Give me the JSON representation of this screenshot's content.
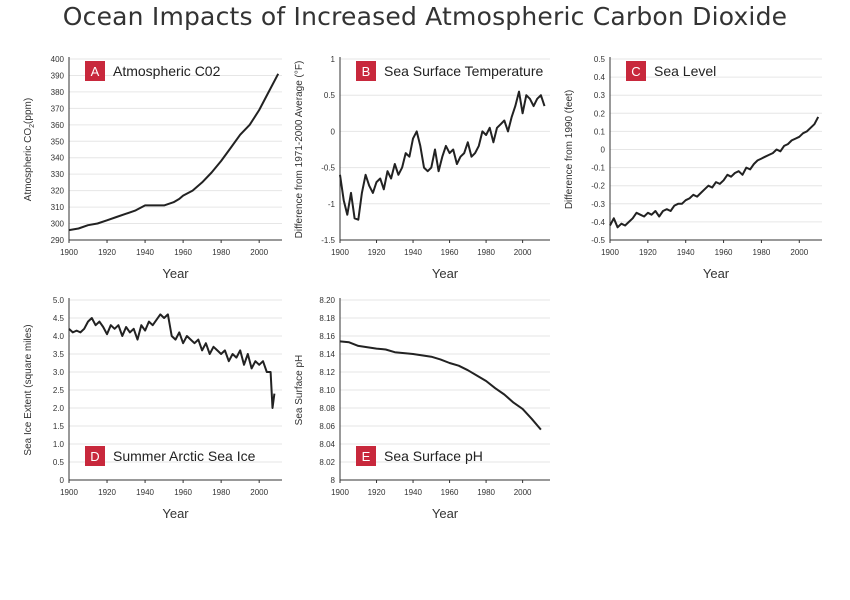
{
  "title": "Ocean Impacts of Increased Atmospheric Carbon Dioxide",
  "colors": {
    "badge": "#c8283c",
    "line": "#222222",
    "grid": "#e6e6e6",
    "text": "#333333"
  },
  "chart_data": [
    {
      "id": "A",
      "badge": "A",
      "type": "line",
      "title": "Atmospheric C02",
      "xlabel": "Year",
      "ylabel_parts": [
        "Atmospheric CO",
        "2",
        "(ppm)"
      ],
      "xlim": [
        1900,
        2012
      ],
      "ylim": [
        290,
        400
      ],
      "xticks": [
        1900,
        1920,
        1940,
        1960,
        1980,
        2000
      ],
      "yticks": [
        290,
        300,
        310,
        320,
        330,
        340,
        350,
        360,
        370,
        380,
        390,
        400
      ],
      "grid": true,
      "legend": "top-left",
      "series": [
        {
          "x": [
            1900,
            1905,
            1910,
            1915,
            1920,
            1925,
            1930,
            1935,
            1940,
            1945,
            1950,
            1955,
            1958,
            1960,
            1965,
            1970,
            1975,
            1980,
            1985,
            1990,
            1995,
            2000,
            2005,
            2010
          ],
          "y": [
            296,
            297,
            299,
            300,
            302,
            304,
            306,
            308,
            311,
            311,
            311,
            313,
            315,
            317,
            320,
            325,
            331,
            338,
            346,
            354,
            360,
            369,
            380,
            391
          ]
        }
      ]
    },
    {
      "id": "B",
      "badge": "B",
      "type": "line",
      "title": "Sea Surface Temperature",
      "xlabel": "Year",
      "ylabel": "Difference from 1971-2000 Average (°F)",
      "xlim": [
        1900,
        2015
      ],
      "ylim": [
        -1.5,
        1
      ],
      "xticks": [
        1900,
        1920,
        1940,
        1960,
        1980,
        2000
      ],
      "yticks": [
        -1.5,
        -1,
        -0.5,
        0,
        0.5,
        1
      ],
      "yticklabels": [
        "-1.5",
        "-1",
        "-0.5",
        "0",
        "0.5",
        "1"
      ],
      "grid": true,
      "legend": "top-left",
      "series": [
        {
          "x": [
            1900,
            1902,
            1904,
            1906,
            1908,
            1910,
            1912,
            1914,
            1916,
            1918,
            1920,
            1922,
            1924,
            1926,
            1928,
            1930,
            1932,
            1934,
            1936,
            1938,
            1940,
            1942,
            1944,
            1946,
            1948,
            1950,
            1952,
            1954,
            1956,
            1958,
            1960,
            1962,
            1964,
            1966,
            1968,
            1970,
            1972,
            1974,
            1976,
            1978,
            1980,
            1982,
            1984,
            1986,
            1988,
            1990,
            1992,
            1994,
            1996,
            1998,
            2000,
            2002,
            2004,
            2006,
            2008,
            2010,
            2012
          ],
          "y": [
            -0.6,
            -0.95,
            -1.15,
            -0.85,
            -1.2,
            -1.22,
            -0.85,
            -0.6,
            -0.75,
            -0.85,
            -0.7,
            -0.65,
            -0.8,
            -0.55,
            -0.65,
            -0.45,
            -0.6,
            -0.5,
            -0.3,
            -0.35,
            -0.1,
            0.0,
            -0.2,
            -0.5,
            -0.55,
            -0.5,
            -0.25,
            -0.55,
            -0.35,
            -0.2,
            -0.3,
            -0.25,
            -0.45,
            -0.35,
            -0.3,
            -0.15,
            -0.35,
            -0.3,
            -0.2,
            0.0,
            -0.05,
            0.05,
            -0.15,
            0.05,
            0.1,
            0.15,
            0.0,
            0.2,
            0.35,
            0.55,
            0.25,
            0.5,
            0.45,
            0.35,
            0.45,
            0.5,
            0.35
          ]
        }
      ]
    },
    {
      "id": "C",
      "badge": "C",
      "type": "line",
      "title": "Sea Level",
      "xlabel": "Year",
      "ylabel": "Difference from 1990 (feet)",
      "xlim": [
        1900,
        2012
      ],
      "ylim": [
        -0.5,
        0.5
      ],
      "xticks": [
        1900,
        1920,
        1940,
        1960,
        1980,
        2000
      ],
      "yticks": [
        -0.5,
        -0.4,
        -0.3,
        -0.2,
        -0.1,
        0,
        0.1,
        0.2,
        0.3,
        0.4,
        0.5
      ],
      "yticklabels": [
        "-0.5",
        "-0.4",
        "-0.3",
        "-0.2",
        "-0.1",
        "0",
        "0.1",
        "0.2",
        "0.3",
        "0.4",
        "0.5"
      ],
      "grid": true,
      "legend": "top-left",
      "series": [
        {
          "x": [
            1900,
            1902,
            1904,
            1906,
            1908,
            1910,
            1912,
            1914,
            1916,
            1918,
            1920,
            1922,
            1924,
            1926,
            1928,
            1930,
            1932,
            1934,
            1936,
            1938,
            1940,
            1942,
            1944,
            1946,
            1948,
            1950,
            1952,
            1954,
            1956,
            1958,
            1960,
            1962,
            1964,
            1966,
            1968,
            1970,
            1972,
            1974,
            1976,
            1978,
            1980,
            1982,
            1984,
            1986,
            1988,
            1990,
            1992,
            1994,
            1996,
            1998,
            2000,
            2002,
            2004,
            2006,
            2008,
            2010
          ],
          "y": [
            -0.42,
            -0.38,
            -0.43,
            -0.41,
            -0.42,
            -0.4,
            -0.38,
            -0.35,
            -0.36,
            -0.37,
            -0.35,
            -0.36,
            -0.34,
            -0.37,
            -0.34,
            -0.33,
            -0.34,
            -0.31,
            -0.3,
            -0.3,
            -0.28,
            -0.27,
            -0.25,
            -0.26,
            -0.24,
            -0.22,
            -0.2,
            -0.21,
            -0.18,
            -0.19,
            -0.17,
            -0.14,
            -0.15,
            -0.13,
            -0.12,
            -0.14,
            -0.1,
            -0.11,
            -0.08,
            -0.06,
            -0.05,
            -0.04,
            -0.03,
            -0.02,
            0.0,
            -0.01,
            0.02,
            0.03,
            0.05,
            0.06,
            0.07,
            0.09,
            0.1,
            0.12,
            0.14,
            0.18
          ]
        }
      ]
    },
    {
      "id": "D",
      "badge": "D",
      "type": "line",
      "title": "Summer Arctic Sea Ice",
      "xlabel": "Year",
      "ylabel": "Sea Ice Extent (square miles)",
      "xlim": [
        1900,
        2012
      ],
      "ylim": [
        0,
        5
      ],
      "xticks": [
        1900,
        1920,
        1940,
        1960,
        1980,
        2000
      ],
      "yticks": [
        0,
        0.5,
        1,
        1.5,
        2,
        2.5,
        3,
        3.5,
        4,
        4.5,
        5
      ],
      "yticklabels": [
        "0",
        "0.5",
        "1.0",
        "1.5",
        "2.0",
        "2.5",
        "3.0",
        "3.5",
        "4.0",
        "4.5",
        "5.0"
      ],
      "grid": true,
      "legend": "bottom-left",
      "series": [
        {
          "x": [
            1900,
            1902,
            1904,
            1906,
            1908,
            1910,
            1912,
            1914,
            1916,
            1918,
            1920,
            1922,
            1924,
            1926,
            1928,
            1930,
            1932,
            1934,
            1936,
            1938,
            1940,
            1942,
            1944,
            1946,
            1948,
            1950,
            1952,
            1954,
            1956,
            1958,
            1960,
            1962,
            1964,
            1966,
            1968,
            1970,
            1972,
            1974,
            1976,
            1978,
            1980,
            1982,
            1984,
            1986,
            1988,
            1990,
            1992,
            1994,
            1996,
            1998,
            2000,
            2002,
            2004,
            2006,
            2007,
            2008
          ],
          "y": [
            4.2,
            4.1,
            4.15,
            4.1,
            4.2,
            4.4,
            4.5,
            4.3,
            4.4,
            4.25,
            4.05,
            4.3,
            4.2,
            4.3,
            4.0,
            4.25,
            4.1,
            4.2,
            3.9,
            4.3,
            4.15,
            4.4,
            4.3,
            4.45,
            4.6,
            4.5,
            4.6,
            4.0,
            3.9,
            4.1,
            3.8,
            4.0,
            3.9,
            3.8,
            3.9,
            3.6,
            3.8,
            3.5,
            3.7,
            3.6,
            3.5,
            3.6,
            3.3,
            3.5,
            3.4,
            3.6,
            3.2,
            3.5,
            3.1,
            3.3,
            3.2,
            3.3,
            3.0,
            3.0,
            2.0,
            2.4
          ]
        }
      ]
    },
    {
      "id": "E",
      "badge": "E",
      "type": "line",
      "title": "Sea Surface pH",
      "xlabel": "Year",
      "ylabel": "Sea Surface pH",
      "xlim": [
        1900,
        2015
      ],
      "ylim": [
        8.0,
        8.2
      ],
      "xticks": [
        1900,
        1920,
        1940,
        1960,
        1980,
        2000
      ],
      "yticks": [
        8.0,
        8.02,
        8.04,
        8.06,
        8.08,
        8.1,
        8.12,
        8.14,
        8.16,
        8.18,
        8.2
      ],
      "yticklabels": [
        "8",
        "8.02",
        "8.04",
        "8.06",
        "8.08",
        "8.10",
        "8.12",
        "8.14",
        "8.16",
        "8.18",
        "8.20"
      ],
      "grid": true,
      "legend": "bottom-left",
      "series": [
        {
          "x": [
            1900,
            1905,
            1910,
            1920,
            1925,
            1930,
            1940,
            1950,
            1955,
            1960,
            1965,
            1970,
            1975,
            1980,
            1985,
            1990,
            1995,
            2000,
            2005,
            2010
          ],
          "y": [
            8.154,
            8.153,
            8.149,
            8.146,
            8.145,
            8.142,
            8.14,
            8.137,
            8.134,
            8.13,
            8.127,
            8.122,
            8.116,
            8.11,
            8.102,
            8.095,
            8.086,
            8.079,
            8.068,
            8.056
          ]
        }
      ]
    }
  ]
}
